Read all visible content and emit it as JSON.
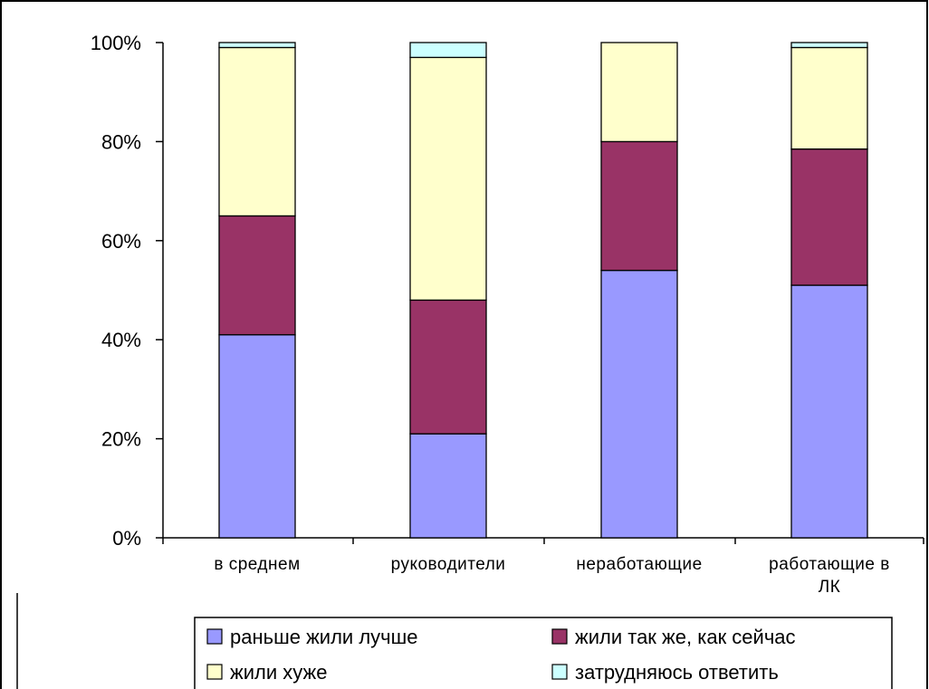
{
  "chart_data": {
    "type": "bar",
    "stacked": true,
    "categories": [
      "в среднем",
      "руководители",
      "неработающие",
      "работающие в ЛК"
    ],
    "category_lines": [
      [
        "в среднем"
      ],
      [
        "руководители"
      ],
      [
        "неработающие"
      ],
      [
        "работающие в",
        "ЛК"
      ]
    ],
    "series": [
      {
        "name": "раньше жили лучше",
        "color": "#9999FF",
        "values": [
          41,
          21,
          54,
          51
        ]
      },
      {
        "name": "жили так же, как сейчас",
        "color": "#993366",
        "values": [
          24,
          27,
          26,
          27.5
        ]
      },
      {
        "name": "жили хуже",
        "color": "#FFFFCC",
        "values": [
          34,
          49,
          20,
          20.5
        ]
      },
      {
        "name": "затрудняюсь ответить",
        "color": "#CCFFFF",
        "values": [
          1,
          3,
          0,
          1
        ]
      }
    ],
    "y_ticks": [
      "0%",
      "20%",
      "40%",
      "60%",
      "80%",
      "100%"
    ],
    "ylim": [
      0,
      100
    ],
    "grid": false,
    "legend_position": "bottom"
  }
}
